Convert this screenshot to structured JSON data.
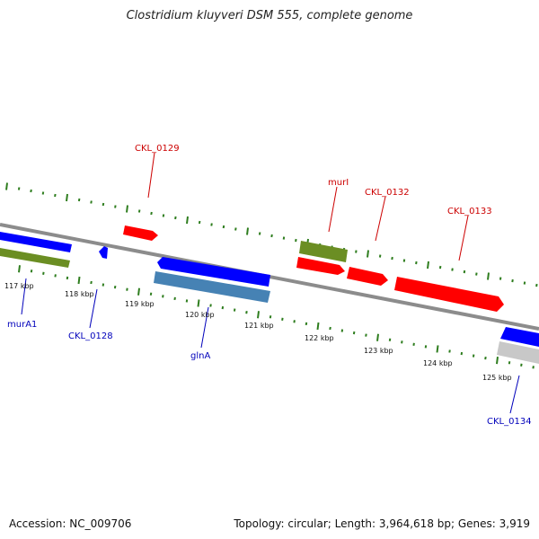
{
  "title": "Clostridium kluyveri DSM 555, complete genome",
  "footer": {
    "accession": "Accession: NC_009706",
    "summary": "Topology: circular; Length: 3,964,618 bp; Genes: 3,919"
  },
  "colors": {
    "backbone": "#8c8c8c",
    "tick": "#2e7d1e",
    "forward_label": "#cc0000",
    "reverse_label": "#0000bb",
    "cds_red": "#ff0000",
    "cds_blue": "#0000ff",
    "cds_olive": "#6b8e23",
    "cds_steel": "#4682b4",
    "cds_gray": "#c8c8c8"
  },
  "scale_labels": [
    "117 kbp",
    "118 kbp",
    "119 kbp",
    "120 kbp",
    "121 kbp",
    "122 kbp",
    "123 kbp",
    "124 kbp",
    "125 kbp"
  ],
  "gene_labels": {
    "top": [
      "CKL_0129",
      "murI",
      "CKL_0132",
      "CKL_0133"
    ],
    "bottom": [
      "murA1",
      "CKL_0128",
      "glnA",
      "CKL_0134"
    ]
  }
}
